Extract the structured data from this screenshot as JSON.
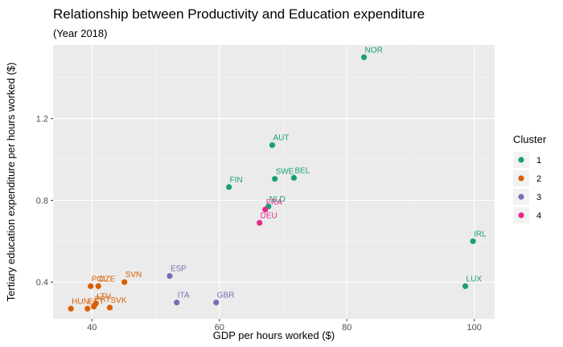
{
  "chart_data": {
    "type": "scatter",
    "title": "Relationship between Productivity and Education expenditure",
    "subtitle": "(Year 2018)",
    "xlabel": "GDP per hours worked ($)",
    "ylabel": "Tertiary education expenditure per hours worked ($)",
    "xlim": [
      33.9,
      103.2
    ],
    "ylim": [
      0.22,
      1.56
    ],
    "xticks": [
      40,
      60,
      80,
      100
    ],
    "yticks": [
      0.4,
      0.8,
      1.2
    ],
    "grid": true,
    "legend": {
      "title": "Cluster",
      "position": "right",
      "entries": [
        {
          "label": "1",
          "color": "#1b9e77"
        },
        {
          "label": "2",
          "color": "#d95f02"
        },
        {
          "label": "3",
          "color": "#7570b3"
        },
        {
          "label": "4",
          "color": "#e7298a"
        }
      ]
    },
    "points": [
      {
        "label": "NOR",
        "x": 82.7,
        "y": 1.5,
        "cluster": "1"
      },
      {
        "label": "AUT",
        "x": 68.3,
        "y": 1.07,
        "cluster": "1"
      },
      {
        "label": "SWE",
        "x": 68.7,
        "y": 0.905,
        "cluster": "1"
      },
      {
        "label": "BEL",
        "x": 71.7,
        "y": 0.91,
        "cluster": "1"
      },
      {
        "label": "FIN",
        "x": 61.5,
        "y": 0.865,
        "cluster": "1"
      },
      {
        "label": "IRL",
        "x": 99.8,
        "y": 0.6,
        "cluster": "1"
      },
      {
        "label": "LUX",
        "x": 98.6,
        "y": 0.38,
        "cluster": "1"
      },
      {
        "label": "NLD",
        "x": 67.7,
        "y": 0.77,
        "cluster": "1"
      },
      {
        "label": "FRA",
        "x": 67.2,
        "y": 0.755,
        "cluster": "4"
      },
      {
        "label": "DEU",
        "x": 66.3,
        "y": 0.69,
        "cluster": "4"
      },
      {
        "label": "ESP",
        "x": 52.2,
        "y": 0.43,
        "cluster": "3"
      },
      {
        "label": "ITA",
        "x": 53.3,
        "y": 0.3,
        "cluster": "3"
      },
      {
        "label": "GBR",
        "x": 59.5,
        "y": 0.3,
        "cluster": "3"
      },
      {
        "label": "SVN",
        "x": 45.1,
        "y": 0.4,
        "cluster": "2"
      },
      {
        "label": "POL",
        "x": 39.8,
        "y": 0.38,
        "cluster": "2"
      },
      {
        "label": "CZE",
        "x": 41.0,
        "y": 0.38,
        "cluster": "2"
      },
      {
        "label": "LTU",
        "x": 40.6,
        "y": 0.295,
        "cluster": "2"
      },
      {
        "label": "PRT",
        "x": 40.3,
        "y": 0.28,
        "cluster": "2"
      },
      {
        "label": "SVK",
        "x": 42.8,
        "y": 0.275,
        "cluster": "2"
      },
      {
        "label": "HUN",
        "x": 36.7,
        "y": 0.27,
        "cluster": "2"
      },
      {
        "label": "EST",
        "x": 39.3,
        "y": 0.27,
        "cluster": "2"
      }
    ]
  }
}
